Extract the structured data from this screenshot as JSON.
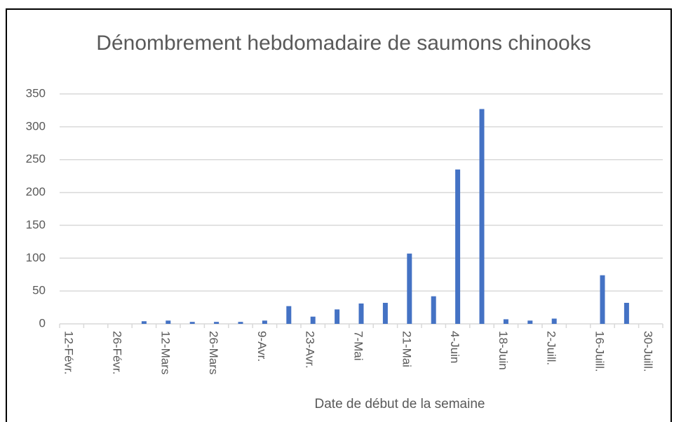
{
  "chart_data": {
    "type": "bar",
    "title": "Dénombrement hebdomadaire de saumons chinooks",
    "x_label": "Date de début de la semaine",
    "categories": [
      "12-Févr.",
      null,
      "26-Févr.",
      null,
      "12-Mars",
      null,
      "26-Mars",
      null,
      "9-Avr.",
      null,
      "23-Avr.",
      null,
      "7-Mai",
      null,
      "21-Mai",
      null,
      "4-Juin",
      null,
      "18-Juin",
      null,
      "2-Juill.",
      null,
      "16-Juill.",
      null,
      "30-Juill."
    ],
    "values": [
      0,
      0,
      0,
      4,
      5,
      3,
      3,
      3,
      5,
      27,
      11,
      22,
      31,
      32,
      107,
      42,
      235,
      327,
      7,
      5,
      8,
      0,
      74,
      32,
      0
    ],
    "color": "#4472c4",
    "ylim": [
      0,
      350
    ],
    "yticks": [
      0,
      50,
      100,
      150,
      200,
      250,
      300,
      350
    ],
    "grid": true
  }
}
